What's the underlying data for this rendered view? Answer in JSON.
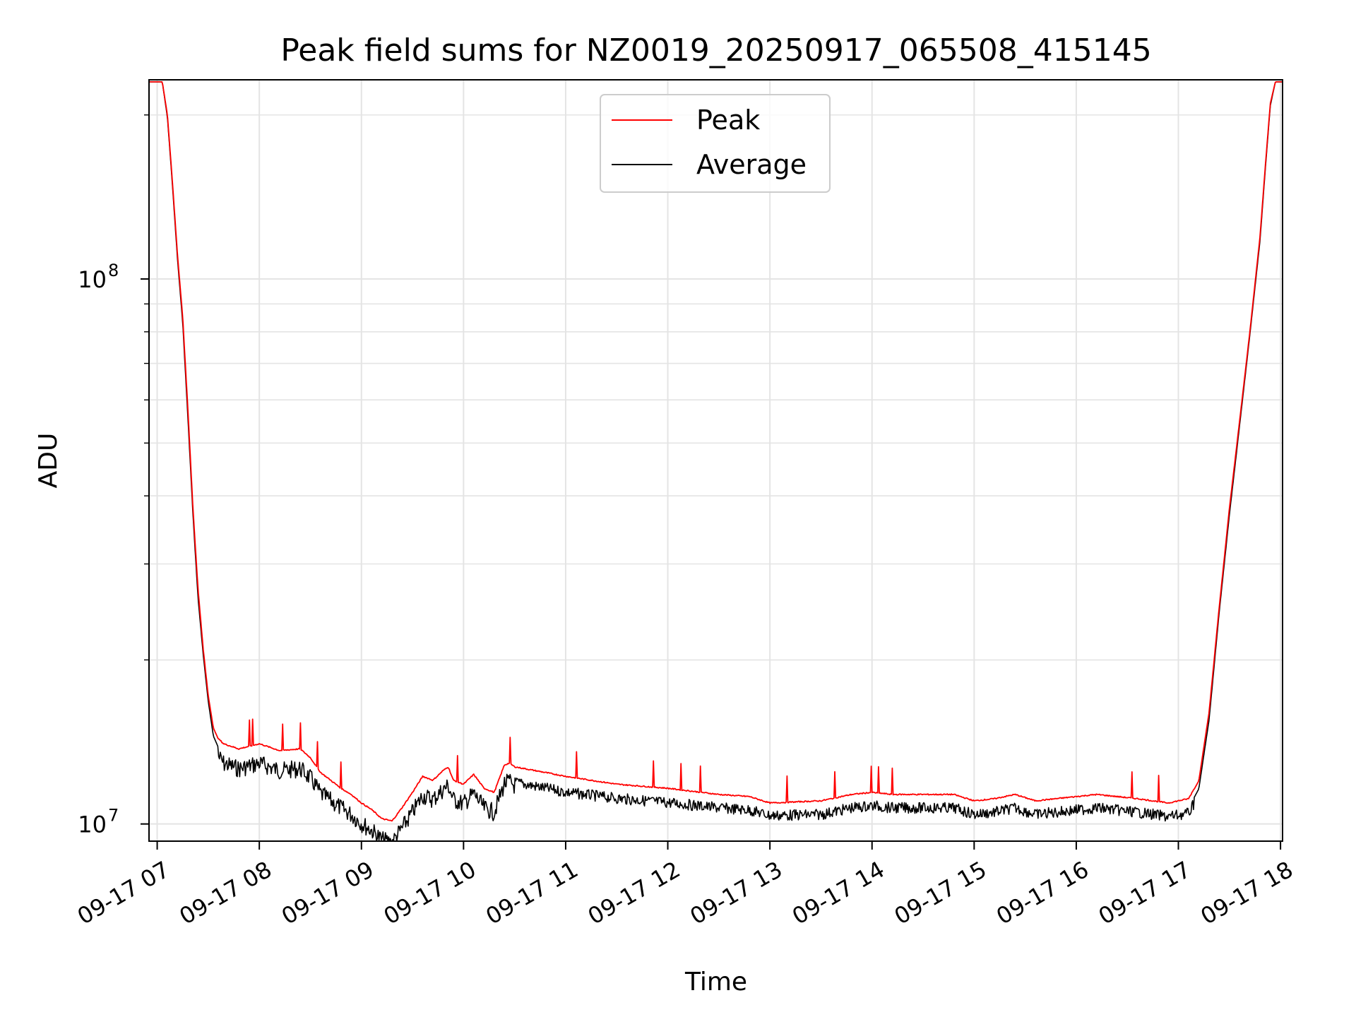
{
  "chart_data": {
    "type": "line",
    "title": "Peak field sums for NZ0019_20250917_065508_415145",
    "xlabel": "Time",
    "ylabel": "ADU",
    "yscale": "log",
    "ylim": [
      9300000,
      232000000
    ],
    "xlim_hours": [
      6.92,
      18.02
    ],
    "grid": true,
    "x_ticks": [
      {
        "hour": 7,
        "label": "09-17 07"
      },
      {
        "hour": 8,
        "label": "09-17 08"
      },
      {
        "hour": 9,
        "label": "09-17 09"
      },
      {
        "hour": 10,
        "label": "09-17 10"
      },
      {
        "hour": 11,
        "label": "09-17 11"
      },
      {
        "hour": 12,
        "label": "09-17 12"
      },
      {
        "hour": 13,
        "label": "09-17 13"
      },
      {
        "hour": 14,
        "label": "09-17 14"
      },
      {
        "hour": 15,
        "label": "09-17 15"
      },
      {
        "hour": 16,
        "label": "09-17 16"
      },
      {
        "hour": 17,
        "label": "09-17 17"
      },
      {
        "hour": 18,
        "label": "09-17 18"
      }
    ],
    "y_major_ticks": [
      {
        "value": 10000000,
        "base": "10",
        "exp": "7"
      },
      {
        "value": 100000000,
        "base": "10",
        "exp": "8"
      }
    ],
    "legend": {
      "placement": "upper center",
      "entries": [
        {
          "name": "Peak",
          "color": "#ff0000"
        },
        {
          "name": "Average",
          "color": "#000000"
        }
      ]
    },
    "series": [
      {
        "name": "Peak",
        "color": "#ff0000",
        "x_hours": [
          6.92,
          7.05,
          7.1,
          7.15,
          7.2,
          7.25,
          7.3,
          7.35,
          7.4,
          7.45,
          7.5,
          7.55,
          7.6,
          7.65,
          7.7,
          7.8,
          8.0,
          8.2,
          8.4,
          8.5,
          8.6,
          8.8,
          8.9,
          9.0,
          9.1,
          9.2,
          9.3,
          9.4,
          9.5,
          9.6,
          9.7,
          9.8,
          9.85,
          9.9,
          10.0,
          10.1,
          10.2,
          10.3,
          10.4,
          10.45,
          10.5,
          10.8,
          11.0,
          11.5,
          12.0,
          12.5,
          12.8,
          13.0,
          13.5,
          13.8,
          14.0,
          14.2,
          14.5,
          14.8,
          15.0,
          15.2,
          15.4,
          15.6,
          16.0,
          16.2,
          16.6,
          16.9,
          17.1,
          17.2,
          17.3,
          17.4,
          17.5,
          17.6,
          17.7,
          17.8,
          17.85,
          17.9,
          17.95,
          18.02
        ],
        "values": [
          230000000,
          230000000,
          200000000,
          150000000,
          110000000,
          85000000,
          58000000,
          38000000,
          27000000,
          21000000,
          17200000,
          15000000,
          14300000,
          14000000,
          13900000,
          13700000,
          14000000,
          13600000,
          13700000,
          13200000,
          12400000,
          11600000,
          11300000,
          10900000,
          10600000,
          10200000,
          10100000,
          10700000,
          11400000,
          12200000,
          12000000,
          12500000,
          12700000,
          12000000,
          11800000,
          12300000,
          11600000,
          11400000,
          12800000,
          12900000,
          12700000,
          12400000,
          12200000,
          11800000,
          11600000,
          11300000,
          11200000,
          10900000,
          11000000,
          11300000,
          11400000,
          11300000,
          11300000,
          11300000,
          11000000,
          11100000,
          11300000,
          11000000,
          11200000,
          11300000,
          11100000,
          10900000,
          11100000,
          12000000,
          16000000,
          25000000,
          38000000,
          55000000,
          80000000,
          120000000,
          160000000,
          210000000,
          230000000,
          230000000
        ]
      },
      {
        "name": "Average",
        "color": "#000000",
        "x_hours": [
          6.92,
          7.05,
          7.1,
          7.15,
          7.2,
          7.25,
          7.3,
          7.35,
          7.4,
          7.45,
          7.5,
          7.55,
          7.6,
          7.65,
          7.7,
          7.8,
          8.0,
          8.2,
          8.4,
          8.5,
          8.6,
          8.8,
          8.9,
          9.0,
          9.1,
          9.2,
          9.3,
          9.4,
          9.5,
          9.6,
          9.7,
          9.8,
          9.85,
          9.9,
          10.0,
          10.1,
          10.2,
          10.3,
          10.4,
          10.45,
          10.5,
          10.8,
          11.0,
          11.5,
          12.0,
          12.5,
          12.8,
          13.0,
          13.5,
          13.8,
          14.0,
          14.2,
          14.5,
          14.8,
          15.0,
          15.2,
          15.4,
          15.6,
          16.0,
          16.2,
          16.6,
          16.9,
          17.1,
          17.2,
          17.3,
          17.4,
          17.5,
          17.6,
          17.7,
          17.8,
          17.85,
          17.9,
          17.95,
          18.02
        ],
        "values": [
          230000000,
          230000000,
          198000000,
          148000000,
          108000000,
          83000000,
          56000000,
          37000000,
          26000000,
          20500000,
          16800000,
          14500000,
          13800000,
          13400000,
          13300000,
          13100000,
          13400000,
          13000000,
          13100000,
          12600000,
          11800000,
          11100000,
          10800000,
          10400000,
          10100000,
          9700000,
          9600000,
          10200000,
          10900000,
          11700000,
          11500000,
          12000000,
          12200000,
          11500000,
          11300000,
          11800000,
          11100000,
          10900000,
          12300000,
          12400000,
          12200000,
          11900000,
          11700000,
          11400000,
          11200000,
          10950000,
          10850000,
          10600000,
          10650000,
          10950000,
          11050000,
          10950000,
          10950000,
          10950000,
          10650000,
          10750000,
          10950000,
          10650000,
          10850000,
          10950000,
          10750000,
          10550000,
          10700000,
          11600000,
          15500000,
          24500000,
          37000000,
          54000000,
          79000000,
          118000000,
          158000000,
          208000000,
          230000000,
          230000000
        ]
      }
    ]
  }
}
